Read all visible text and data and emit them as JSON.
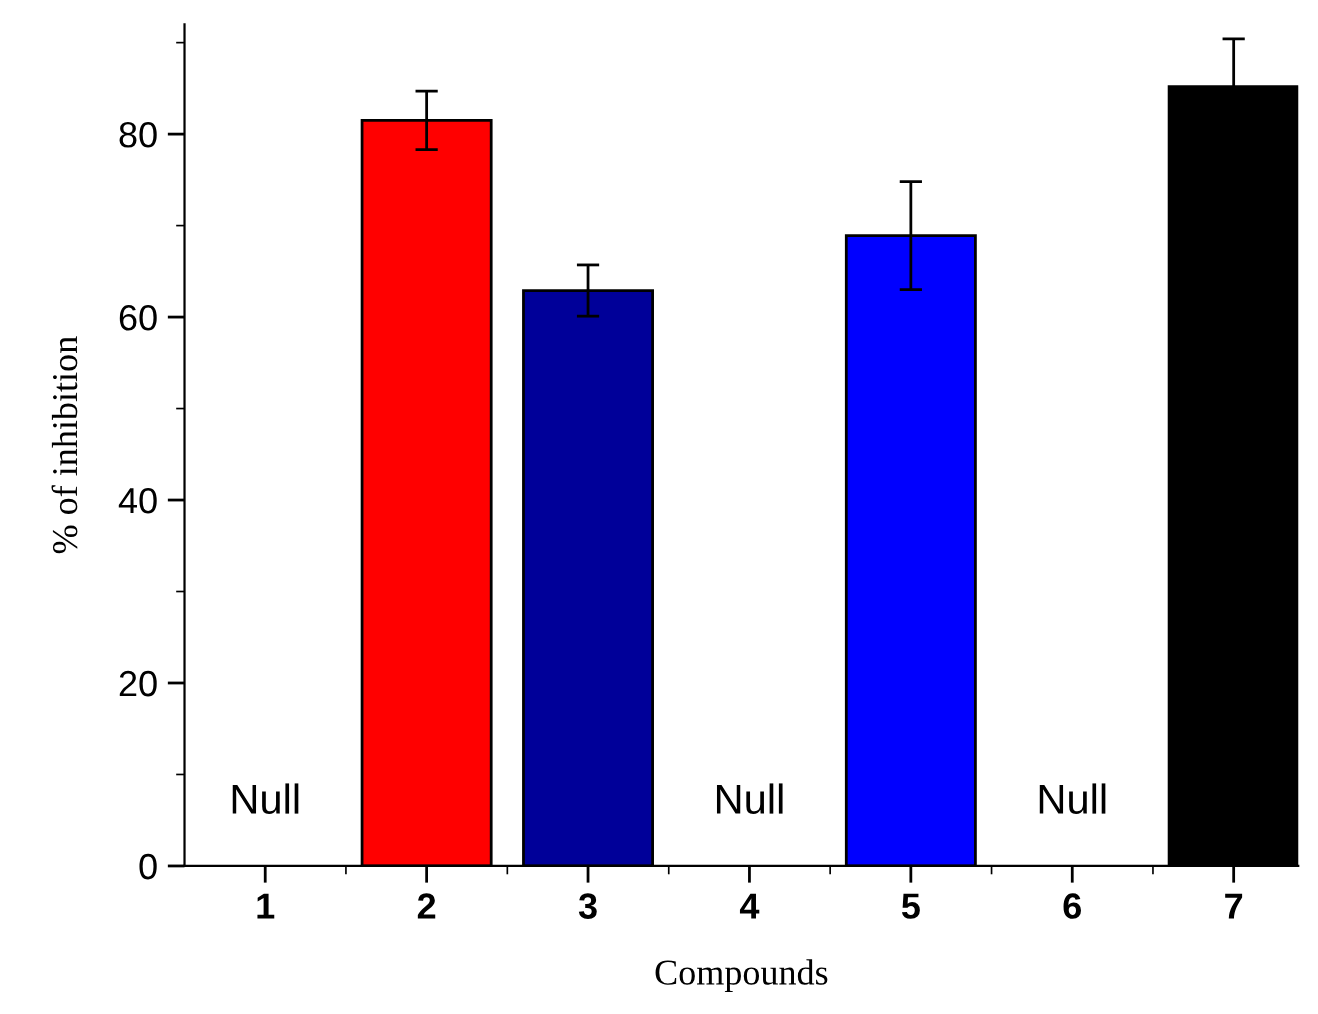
{
  "chart_data": {
    "type": "bar",
    "xlabel": "Compounds",
    "ylabel": "% of inhibition",
    "categories": [
      "1",
      "2",
      "3",
      "4",
      "5",
      "6",
      "7"
    ],
    "values": [
      null,
      81.5,
      62.9,
      null,
      68.9,
      null,
      85.2
    ],
    "errors": [
      null,
      3.2,
      2.8,
      null,
      5.9,
      null,
      5.2
    ],
    "colors": [
      "#ffffff",
      "#ff0000",
      "#000099",
      "#ffffff",
      "#0000ff",
      "#ffffff",
      "#000000"
    ],
    "ylim": [
      0,
      92
    ],
    "yticks": [
      0,
      20,
      40,
      60,
      80
    ],
    "grid": false,
    "annotations": [
      "Null",
      "Null",
      "Null"
    ]
  }
}
